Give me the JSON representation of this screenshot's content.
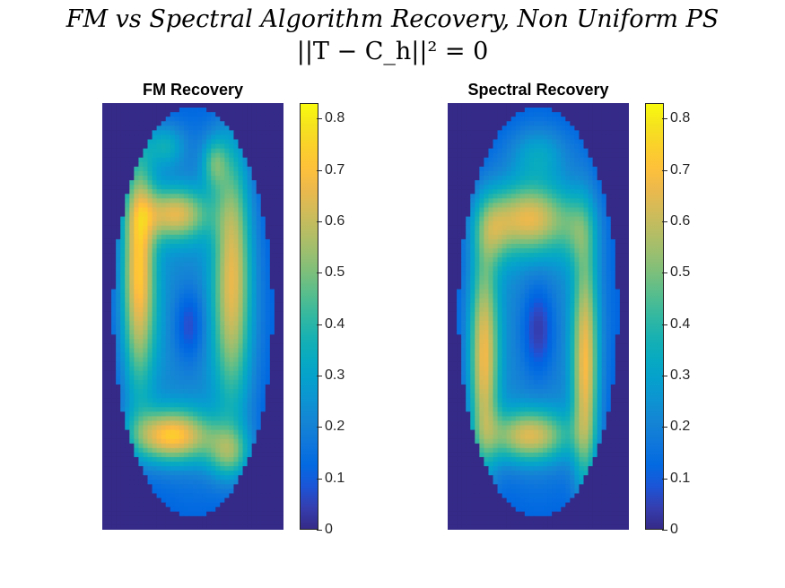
{
  "figure": {
    "title_line1": "FM vs Spectral Algorithm Recovery, Non Uniform PS",
    "title_line2": "||T − C_h||² = 0"
  },
  "chart_data": [
    {
      "type": "heatmap",
      "title": "FM Recovery",
      "colormap": "parula",
      "clim": [
        0,
        0.83
      ],
      "colorbar_ticks": [
        "0",
        "0.1",
        "0.2",
        "0.3",
        "0.4",
        "0.5",
        "0.6",
        "0.7",
        "0.8"
      ],
      "grid": "off"
    },
    {
      "type": "heatmap",
      "title": "Spectral Recovery",
      "colormap": "parula",
      "clim": [
        0,
        0.83
      ],
      "colorbar_ticks": [
        "0",
        "0.1",
        "0.2",
        "0.3",
        "0.4",
        "0.5",
        "0.6",
        "0.7",
        "0.8"
      ],
      "grid": "off"
    }
  ]
}
